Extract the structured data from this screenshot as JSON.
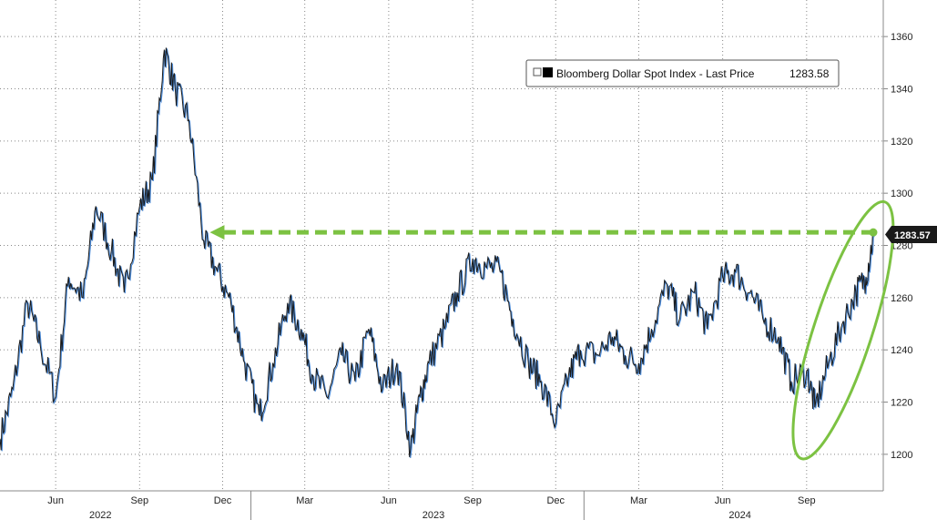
{
  "chart_data": {
    "type": "line",
    "title": "",
    "xlabel": "",
    "ylabel": "",
    "ylim": [
      1186,
      1374
    ],
    "grid": true,
    "legend_position": "top-right",
    "legend": {
      "label": "Bloomberg Dollar Spot Index - Last Price",
      "value_text": "1283.58"
    },
    "last_value_label": "1283.57",
    "y_ticks": [
      1200,
      1220,
      1240,
      1260,
      1280,
      1300,
      1320,
      1340,
      1360
    ],
    "x_month_ticks": [
      "Jun",
      "Sep",
      "Dec",
      "Mar",
      "Jun",
      "Sep",
      "Dec",
      "Mar",
      "Jun",
      "Sep"
    ],
    "x_year_ticks": [
      "2022",
      "2023",
      "2024"
    ],
    "colors": {
      "line": "#1a1a1a",
      "line_accent": "#1f6fd1",
      "grid": "#888888",
      "annotation": "#7cc242",
      "axis": "#888888"
    },
    "series": [
      {
        "x": [
          "2022-04-01",
          "2022-04-15",
          "2022-05-01",
          "2022-05-15",
          "2022-06-01",
          "2022-06-15",
          "2022-07-01",
          "2022-07-15",
          "2022-08-01",
          "2022-08-15",
          "2022-09-01",
          "2022-09-15",
          "2022-09-28",
          "2022-10-10",
          "2022-10-25",
          "2022-11-10",
          "2022-11-25",
          "2022-12-10",
          "2022-12-25",
          "2023-01-10",
          "2023-01-25",
          "2023-02-10",
          "2023-02-25",
          "2023-03-10",
          "2023-03-25",
          "2023-04-10",
          "2023-04-25",
          "2023-05-10",
          "2023-05-25",
          "2023-06-10",
          "2023-06-25",
          "2023-07-05",
          "2023-07-15",
          "2023-08-01",
          "2023-08-15",
          "2023-09-01",
          "2023-09-15",
          "2023-10-01",
          "2023-10-15",
          "2023-11-01",
          "2023-11-15",
          "2023-12-01",
          "2023-12-15",
          "2023-12-28",
          "2024-01-15",
          "2024-02-01",
          "2024-02-15",
          "2024-03-01",
          "2024-03-15",
          "2024-04-01",
          "2024-04-15",
          "2024-05-01",
          "2024-05-15",
          "2024-06-01",
          "2024-06-15",
          "2024-07-01",
          "2024-07-15",
          "2024-08-01",
          "2024-08-15",
          "2024-09-01",
          "2024-09-10",
          "2024-09-25",
          "2024-10-10",
          "2024-10-25",
          "2024-11-05",
          "2024-11-13"
        ],
        "values": [
          1206,
          1225,
          1258,
          1242,
          1222,
          1268,
          1260,
          1295,
          1278,
          1262,
          1295,
          1305,
          1355,
          1340,
          1328,
          1282,
          1270,
          1258,
          1235,
          1215,
          1235,
          1258,
          1248,
          1230,
          1222,
          1238,
          1228,
          1248,
          1225,
          1235,
          1202,
          1222,
          1235,
          1248,
          1262,
          1275,
          1272,
          1270,
          1252,
          1235,
          1228,
          1212,
          1230,
          1240,
          1238,
          1245,
          1238,
          1235,
          1248,
          1265,
          1252,
          1262,
          1248,
          1268,
          1270,
          1262,
          1252,
          1245,
          1228,
          1232,
          1218,
          1235,
          1250,
          1262,
          1268,
          1283.57
        ]
      }
    ],
    "annotations": [
      {
        "type": "arrow",
        "from_date": "2024-11-13",
        "to_date": "2022-11-17",
        "y": 1285
      },
      {
        "type": "ellipse",
        "date_start": "2024-09-01",
        "date_end": "2024-11-20",
        "y_range": [
          1200,
          1295
        ]
      }
    ]
  }
}
